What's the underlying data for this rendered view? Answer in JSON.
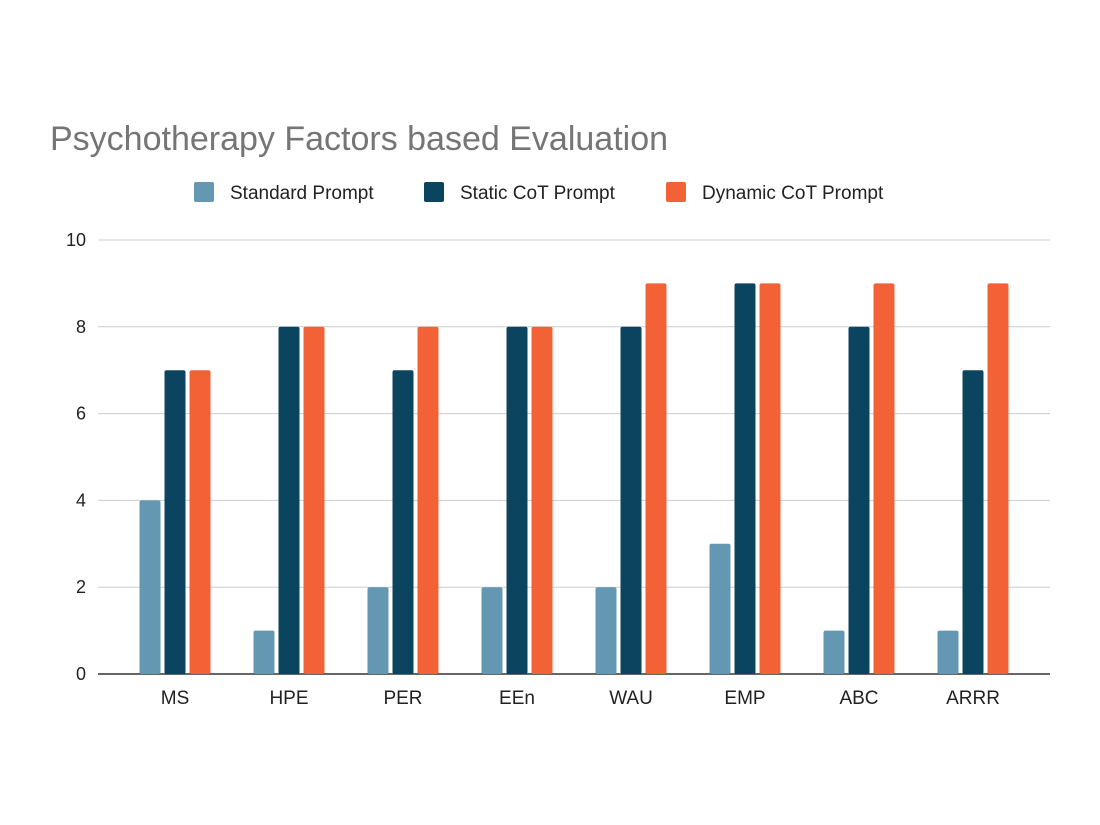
{
  "chart_data": {
    "type": "bar",
    "title": "Psychotherapy Factors based Evaluation",
    "xlabel": "",
    "ylabel": "",
    "categories": [
      "MS",
      "HPE",
      "PER",
      "EEn",
      "WAU",
      "EMP",
      "ABC",
      "ARRR"
    ],
    "series": [
      {
        "name": "Standard Prompt",
        "color": "#6497b1",
        "values": [
          4,
          1,
          2,
          2,
          2,
          3,
          1,
          1
        ]
      },
      {
        "name": "Static CoT Prompt",
        "color": "#0b445e",
        "values": [
          7,
          8,
          7,
          8,
          8,
          9,
          8,
          7
        ]
      },
      {
        "name": "Dynamic CoT Prompt",
        "color": "#f26236",
        "values": [
          7,
          8,
          8,
          8,
          9,
          9,
          9,
          9
        ]
      }
    ],
    "ylim": [
      0,
      10
    ],
    "yticks": [
      0,
      2,
      4,
      6,
      8,
      10
    ],
    "grid": true,
    "legend_position": "top"
  }
}
